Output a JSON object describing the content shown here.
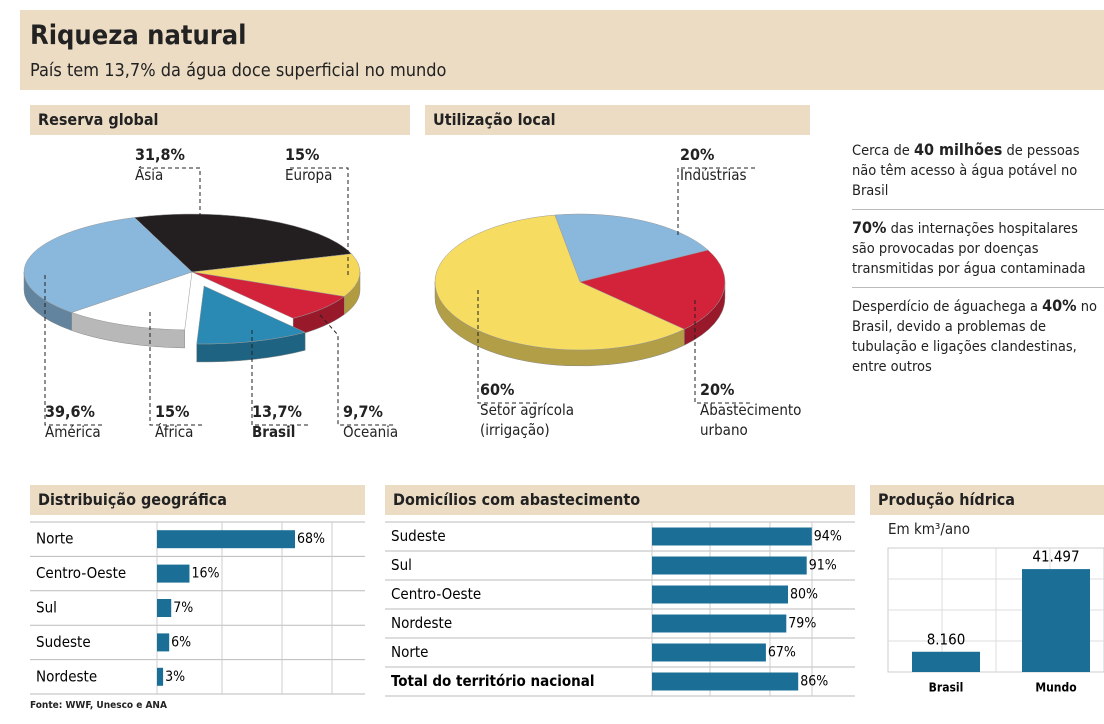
{
  "header": {
    "title": "Riqueza natural",
    "subtitle": "País tem 13,7% da água doce superficial no mundo"
  },
  "chart_data": [
    {
      "type": "pie",
      "title": "Reserva global",
      "categories": [
        "Ásia",
        "Europa",
        "Oceania",
        "Brasil",
        "África",
        "América"
      ],
      "values": [
        31.8,
        15,
        9.7,
        13.7,
        15,
        39.6
      ],
      "value_labels": [
        "31,8%",
        "15%",
        "9,7%",
        "13,7%",
        "15%",
        "39,6%"
      ],
      "colors": [
        "#231f20",
        "#f5d75a",
        "#d2233b",
        "#2a8ab3",
        "#ffffff",
        "#8ab8dc"
      ],
      "explode": [
        false,
        false,
        false,
        true,
        false,
        false
      ],
      "bold": [
        false,
        false,
        false,
        true,
        false,
        false
      ]
    },
    {
      "type": "pie",
      "title": "Utilização local",
      "categories": [
        "Indústrias",
        "Abastecimento urbano",
        "Setor agrícola (irrigação)"
      ],
      "values": [
        20,
        20,
        60
      ],
      "value_labels": [
        "20%",
        "20%",
        "60%"
      ],
      "colors": [
        "#8ab8dc",
        "#d2233b",
        "#f7dc62"
      ]
    },
    {
      "type": "barh",
      "title": "Distribuição geográfica",
      "categories": [
        "Norte",
        "Centro-Oeste",
        "Sul",
        "Sudeste",
        "Nordeste"
      ],
      "values": [
        68,
        16,
        7,
        6,
        3
      ],
      "value_labels": [
        "68%",
        "16%",
        "7%",
        "6%",
        "3%"
      ],
      "color": "#1b6f96",
      "xlim": [
        0,
        100
      ]
    },
    {
      "type": "barh",
      "title": "Domicílios com abastecimento",
      "categories": [
        "Sudeste",
        "Sul",
        "Centro-Oeste",
        "Nordeste",
        "Norte",
        "Total do território nacional"
      ],
      "values": [
        94,
        91,
        80,
        79,
        67,
        86
      ],
      "value_labels": [
        "94%",
        "91%",
        "80%",
        "79%",
        "67%",
        "86%"
      ],
      "color": "#1b6f96",
      "xlim": [
        0,
        100
      ],
      "bold": [
        false,
        false,
        false,
        false,
        false,
        true
      ]
    },
    {
      "type": "bar",
      "title": "Produção hídrica",
      "subtitle": "Em km³/ano",
      "categories": [
        "Brasil",
        "Mundo"
      ],
      "values": [
        8160,
        41497
      ],
      "value_labels": [
        "8.160",
        "41.497"
      ],
      "color": "#1b6f96",
      "ylim": [
        0,
        50000
      ]
    }
  ],
  "facts": [
    [
      {
        "text": "Cerca de ",
        "bold": false
      },
      {
        "text": "40 milhões",
        "bold": true
      },
      {
        "text": " de pessoas não têm acesso à água potável no Brasil",
        "bold": false
      }
    ],
    [
      {
        "text": "70%",
        "bold": true
      },
      {
        "text": " das internações hospitalares são provocadas por doenças transmitidas por água contaminada",
        "bold": false
      }
    ],
    [
      {
        "text": "Desperdício de águachega a ",
        "bold": false
      },
      {
        "text": "40%",
        "bold": true
      },
      {
        "text": " no Brasil, devido a problemas de tubulação e ligações clandestinas, entre outros",
        "bold": false
      }
    ]
  ],
  "source": "Fonte: WWF, Unesco e ANA"
}
